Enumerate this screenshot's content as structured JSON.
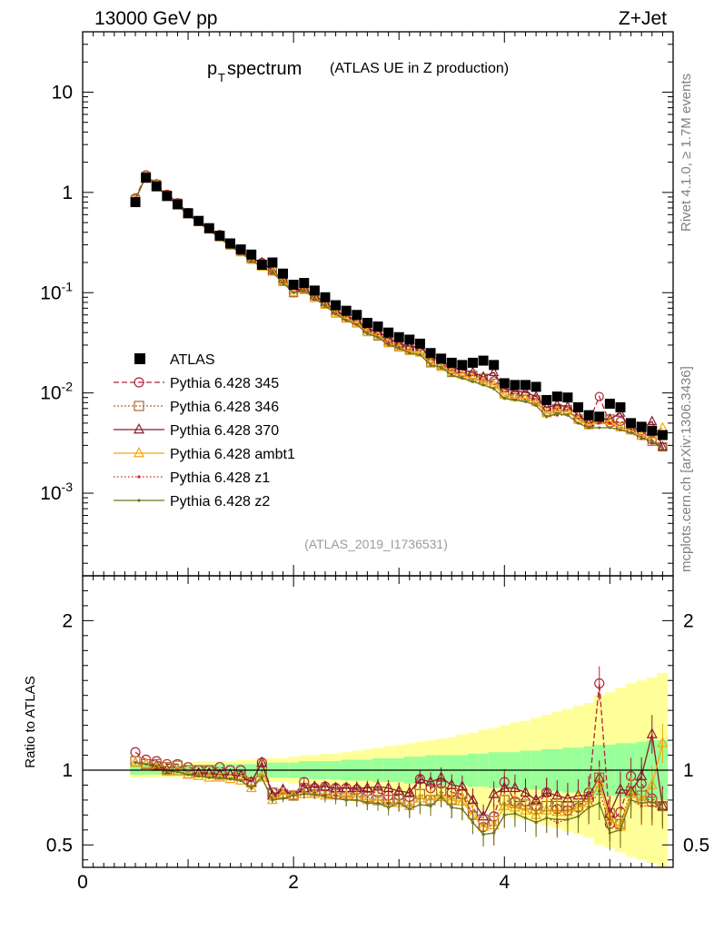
{
  "header": {
    "left": "13000 GeV pp",
    "right": "Z+Jet"
  },
  "title": {
    "main_p": "p",
    "main_sub": "T",
    "main_rest": " spectrum",
    "paren": "(ATLAS UE in Z production)"
  },
  "side": {
    "rivet": "Rivet 4.1.0, ≥ 1.7M events",
    "mcplots": "mcplots.cern.ch [arXiv:1306.3436]"
  },
  "analysis_id": "(ATLAS_2019_I1736531)",
  "ratio_ylabel": "Ratio to ATLAS",
  "colors": {
    "data": "#000000",
    "band_inner": "#99ff99",
    "band_outer": "#ffff99",
    "s345": "#b2253a",
    "s346": "#a86b2e",
    "s370": "#8c1a2a",
    "ambt1": "#f2a60a",
    "z1": "#d41c1c",
    "z2": "#6b7a1c"
  },
  "chart_data": [
    {
      "type": "line",
      "panel": "main",
      "title": "pT spectrum (ATLAS UE in Z production)",
      "xlabel": "",
      "ylabel": "",
      "xlim": [
        0,
        5.6
      ],
      "ylim": [
        0.00015,
        40
      ],
      "yscale": "log",
      "y_tick_labels": [
        "10",
        "1",
        "10^-1",
        "10^-2",
        "10^-3"
      ],
      "x": [
        0.5,
        0.6,
        0.7,
        0.8,
        0.9,
        1.0,
        1.1,
        1.2,
        1.3,
        1.4,
        1.5,
        1.6,
        1.7,
        1.8,
        1.9,
        2.0,
        2.1,
        2.2,
        2.3,
        2.4,
        2.5,
        2.6,
        2.7,
        2.8,
        2.9,
        3.0,
        3.1,
        3.2,
        3.3,
        3.4,
        3.5,
        3.6,
        3.7,
        3.8,
        3.9,
        4.0,
        4.1,
        4.2,
        4.3,
        4.4,
        4.5,
        4.6,
        4.7,
        4.8,
        4.9,
        5.0,
        5.1,
        5.2,
        5.3,
        5.4,
        5.5
      ],
      "data": {
        "name": "ATLAS",
        "values": [
          0.8,
          1.4,
          1.15,
          0.92,
          0.76,
          0.62,
          0.52,
          0.44,
          0.37,
          0.31,
          0.27,
          0.24,
          0.19,
          0.2,
          0.155,
          0.12,
          0.125,
          0.105,
          0.09,
          0.075,
          0.066,
          0.06,
          0.05,
          0.046,
          0.04,
          0.036,
          0.034,
          0.031,
          0.025,
          0.022,
          0.02,
          0.019,
          0.02,
          0.021,
          0.019,
          0.0125,
          0.012,
          0.012,
          0.0115,
          0.0085,
          0.0092,
          0.009,
          0.0072,
          0.006,
          0.0058,
          0.0078,
          0.0072,
          0.005,
          0.0046,
          0.0042,
          0.0038
        ]
      },
      "series": [
        {
          "name": "Pythia 6.428 345",
          "values": [
            0.88,
            1.5,
            1.22,
            0.96,
            0.79,
            0.63,
            0.52,
            0.44,
            0.38,
            0.31,
            0.27,
            0.22,
            0.2,
            0.17,
            0.13,
            0.1,
            0.115,
            0.092,
            0.08,
            0.066,
            0.058,
            0.052,
            0.043,
            0.039,
            0.033,
            0.03,
            0.028,
            0.029,
            0.022,
            0.02,
            0.017,
            0.016,
            0.014,
            0.013,
            0.0132,
            0.0115,
            0.0095,
            0.0095,
            0.0087,
            0.0072,
            0.0068,
            0.0066,
            0.0054,
            0.0051,
            0.0092,
            0.005,
            0.0052,
            0.0048,
            0.0042,
            0.0034,
            0.0029
          ]
        },
        {
          "name": "Pythia 6.428 346",
          "values": [
            0.85,
            1.45,
            1.2,
            0.94,
            0.78,
            0.62,
            0.52,
            0.44,
            0.36,
            0.3,
            0.26,
            0.22,
            0.19,
            0.17,
            0.13,
            0.1,
            0.11,
            0.09,
            0.078,
            0.063,
            0.056,
            0.05,
            0.041,
            0.037,
            0.032,
            0.029,
            0.027,
            0.026,
            0.02,
            0.019,
            0.016,
            0.016,
            0.015,
            0.014,
            0.0125,
            0.01,
            0.0093,
            0.0092,
            0.0085,
            0.0065,
            0.007,
            0.0068,
            0.0055,
            0.0049,
            0.0055,
            0.0055,
            0.0046,
            0.0043,
            0.0038,
            0.0033,
            0.0029
          ]
        },
        {
          "name": "Pythia 6.428 370",
          "values": [
            0.84,
            1.45,
            1.18,
            0.92,
            0.75,
            0.6,
            0.51,
            0.43,
            0.36,
            0.3,
            0.26,
            0.22,
            0.2,
            0.165,
            0.135,
            0.1,
            0.11,
            0.093,
            0.08,
            0.066,
            0.058,
            0.053,
            0.044,
            0.041,
            0.035,
            0.031,
            0.029,
            0.029,
            0.023,
            0.021,
            0.018,
            0.017,
            0.016,
            0.0145,
            0.016,
            0.011,
            0.0105,
            0.0102,
            0.0092,
            0.0072,
            0.0076,
            0.0073,
            0.006,
            0.005,
            0.0055,
            0.0055,
            0.0063,
            0.0043,
            0.0044,
            0.0052,
            0.0029
          ]
        },
        {
          "name": "Pythia 6.428 ambt1",
          "values": [
            0.84,
            1.45,
            1.17,
            0.91,
            0.75,
            0.6,
            0.5,
            0.42,
            0.35,
            0.29,
            0.25,
            0.21,
            0.18,
            0.16,
            0.13,
            0.1,
            0.105,
            0.088,
            0.075,
            0.062,
            0.055,
            0.049,
            0.04,
            0.037,
            0.031,
            0.028,
            0.026,
            0.025,
            0.02,
            0.018,
            0.016,
            0.015,
            0.014,
            0.013,
            0.012,
            0.0095,
            0.009,
            0.0088,
            0.008,
            0.0062,
            0.0066,
            0.0065,
            0.0054,
            0.0047,
            0.0053,
            0.0052,
            0.0045,
            0.0042,
            0.0037,
            0.0038,
            0.0045
          ]
        },
        {
          "name": "Pythia 6.428 z1",
          "values": [
            0.84,
            1.45,
            1.17,
            0.91,
            0.75,
            0.6,
            0.5,
            0.42,
            0.35,
            0.29,
            0.25,
            0.21,
            0.18,
            0.16,
            0.125,
            0.1,
            0.105,
            0.088,
            0.075,
            0.062,
            0.053,
            0.048,
            0.039,
            0.036,
            0.031,
            0.028,
            0.025,
            0.024,
            0.019,
            0.018,
            0.015,
            0.014,
            0.013,
            0.012,
            0.011,
            0.0088,
            0.0085,
            0.0082,
            0.0075,
            0.0058,
            0.006,
            0.006,
            0.005,
            0.0045,
            0.005,
            0.005,
            0.0043,
            0.004,
            0.0035,
            0.0032,
            0.0028
          ]
        },
        {
          "name": "Pythia 6.428 z2",
          "values": [
            0.84,
            1.45,
            1.17,
            0.91,
            0.75,
            0.6,
            0.5,
            0.42,
            0.35,
            0.29,
            0.25,
            0.21,
            0.18,
            0.16,
            0.125,
            0.1,
            0.105,
            0.088,
            0.074,
            0.061,
            0.053,
            0.048,
            0.039,
            0.036,
            0.03,
            0.028,
            0.025,
            0.024,
            0.019,
            0.018,
            0.015,
            0.014,
            0.013,
            0.012,
            0.011,
            0.0088,
            0.0085,
            0.0082,
            0.0075,
            0.0058,
            0.0062,
            0.006,
            0.005,
            0.0045,
            0.0045,
            0.0045,
            0.0043,
            0.004,
            0.0036,
            0.0033,
            0.0028
          ]
        }
      ]
    },
    {
      "type": "line",
      "panel": "ratio",
      "xlabel": "",
      "ylabel": "Ratio to ATLAS",
      "xlim": [
        0,
        5.6
      ],
      "ylim": [
        0.35,
        2.3
      ],
      "x_tick_labels": [
        "0",
        "2",
        "4"
      ],
      "y_tick_labels": [
        "0.5",
        "1",
        "2"
      ],
      "x": [
        0.5,
        0.6,
        0.7,
        0.8,
        0.9,
        1.0,
        1.1,
        1.2,
        1.3,
        1.4,
        1.5,
        1.6,
        1.7,
        1.8,
        1.9,
        2.0,
        2.1,
        2.2,
        2.3,
        2.4,
        2.5,
        2.6,
        2.7,
        2.8,
        2.9,
        3.0,
        3.1,
        3.2,
        3.3,
        3.4,
        3.5,
        3.6,
        3.7,
        3.8,
        3.9,
        4.0,
        4.1,
        4.2,
        4.3,
        4.4,
        4.5,
        4.6,
        4.7,
        4.8,
        4.9,
        5.0,
        5.1,
        5.2,
        5.3,
        5.4,
        5.5
      ],
      "band_inner_half": [
        0.03,
        0.03,
        0.03,
        0.03,
        0.03,
        0.03,
        0.03,
        0.03,
        0.04,
        0.04,
        0.04,
        0.04,
        0.05,
        0.05,
        0.05,
        0.05,
        0.06,
        0.06,
        0.06,
        0.06,
        0.07,
        0.07,
        0.07,
        0.08,
        0.08,
        0.08,
        0.09,
        0.09,
        0.1,
        0.1,
        0.1,
        0.1,
        0.11,
        0.11,
        0.12,
        0.12,
        0.12,
        0.13,
        0.13,
        0.14,
        0.14,
        0.15,
        0.15,
        0.16,
        0.17,
        0.17,
        0.18,
        0.18,
        0.19,
        0.2,
        0.2
      ],
      "band_outer_half": [
        0.05,
        0.05,
        0.05,
        0.05,
        0.05,
        0.05,
        0.06,
        0.06,
        0.06,
        0.06,
        0.07,
        0.07,
        0.08,
        0.08,
        0.08,
        0.09,
        0.1,
        0.1,
        0.11,
        0.11,
        0.12,
        0.13,
        0.14,
        0.15,
        0.16,
        0.17,
        0.18,
        0.19,
        0.2,
        0.21,
        0.22,
        0.24,
        0.25,
        0.27,
        0.28,
        0.3,
        0.32,
        0.33,
        0.35,
        0.37,
        0.39,
        0.41,
        0.43,
        0.45,
        0.5,
        0.52,
        0.55,
        0.58,
        0.6,
        0.62,
        0.65
      ],
      "series": [
        {
          "name": "Pythia 6.428 345",
          "values": [
            1.12,
            1.07,
            1.06,
            1.04,
            1.04,
            1.02,
            1.0,
            1.0,
            1.02,
            1.0,
            1.0,
            0.92,
            1.05,
            0.85,
            0.84,
            0.83,
            0.92,
            0.88,
            0.89,
            0.88,
            0.88,
            0.87,
            0.86,
            0.85,
            0.83,
            0.83,
            0.82,
            0.94,
            0.88,
            0.91,
            0.85,
            0.84,
            0.7,
            0.62,
            0.69,
            0.92,
            0.79,
            0.79,
            0.76,
            0.85,
            0.74,
            0.73,
            0.75,
            0.85,
            1.58,
            0.64,
            0.72,
            0.96,
            0.91,
            0.81,
            0.76
          ]
        },
        {
          "name": "Pythia 6.428 346",
          "values": [
            1.06,
            1.04,
            1.04,
            1.02,
            1.03,
            1.0,
            1.0,
            1.0,
            0.97,
            0.97,
            0.96,
            0.92,
            0.99,
            0.85,
            0.84,
            0.83,
            0.88,
            0.86,
            0.87,
            0.84,
            0.85,
            0.83,
            0.82,
            0.8,
            0.8,
            0.81,
            0.79,
            0.84,
            0.8,
            0.86,
            0.8,
            0.84,
            0.75,
            0.67,
            0.66,
            0.8,
            0.78,
            0.77,
            0.74,
            0.76,
            0.76,
            0.76,
            0.76,
            0.82,
            0.95,
            0.71,
            0.64,
            0.86,
            0.83,
            0.79,
            0.76
          ]
        },
        {
          "name": "Pythia 6.428 370",
          "values": [
            1.05,
            1.04,
            1.03,
            1.0,
            0.99,
            0.97,
            0.98,
            0.98,
            0.97,
            0.97,
            0.96,
            0.92,
            1.05,
            0.83,
            0.87,
            0.83,
            0.88,
            0.89,
            0.89,
            0.88,
            0.88,
            0.88,
            0.88,
            0.89,
            0.88,
            0.86,
            0.85,
            0.94,
            0.92,
            0.95,
            0.9,
            0.89,
            0.8,
            0.69,
            0.84,
            0.88,
            0.88,
            0.85,
            0.8,
            0.85,
            0.83,
            0.81,
            0.83,
            0.83,
            0.95,
            0.71,
            0.87,
            0.86,
            0.96,
            1.24,
            0.76
          ]
        },
        {
          "name": "Pythia 6.428 ambt1",
          "values": [
            1.05,
            1.04,
            1.02,
            0.99,
            0.99,
            0.97,
            0.96,
            0.95,
            0.95,
            0.94,
            0.93,
            0.88,
            0.95,
            0.8,
            0.84,
            0.83,
            0.84,
            0.84,
            0.83,
            0.83,
            0.83,
            0.82,
            0.8,
            0.8,
            0.78,
            0.78,
            0.76,
            0.81,
            0.8,
            0.82,
            0.8,
            0.79,
            0.7,
            0.62,
            0.63,
            0.76,
            0.75,
            0.73,
            0.7,
            0.73,
            0.72,
            0.72,
            0.75,
            0.78,
            0.91,
            0.67,
            0.62,
            0.84,
            0.8,
            0.9,
            1.18
          ]
        },
        {
          "name": "Pythia 6.428 z1",
          "values": [
            1.05,
            1.04,
            1.02,
            0.99,
            0.99,
            0.97,
            0.96,
            0.95,
            0.95,
            0.94,
            0.93,
            0.88,
            0.95,
            0.8,
            0.81,
            0.83,
            0.84,
            0.84,
            0.83,
            0.83,
            0.8,
            0.8,
            0.78,
            0.78,
            0.78,
            0.78,
            0.74,
            0.77,
            0.76,
            0.82,
            0.75,
            0.74,
            0.65,
            0.57,
            0.58,
            0.7,
            0.71,
            0.68,
            0.65,
            0.68,
            0.65,
            0.67,
            0.69,
            0.75,
            0.86,
            0.64,
            0.6,
            0.8,
            0.76,
            0.76,
            0.74
          ]
        },
        {
          "name": "Pythia 6.428 z2",
          "values": [
            1.05,
            1.04,
            1.02,
            0.99,
            0.99,
            0.97,
            0.96,
            0.95,
            0.95,
            0.94,
            0.93,
            0.88,
            0.95,
            0.8,
            0.81,
            0.83,
            0.84,
            0.84,
            0.82,
            0.81,
            0.8,
            0.8,
            0.78,
            0.78,
            0.75,
            0.78,
            0.74,
            0.77,
            0.76,
            0.82,
            0.75,
            0.74,
            0.65,
            0.57,
            0.58,
            0.7,
            0.71,
            0.68,
            0.65,
            0.68,
            0.67,
            0.67,
            0.69,
            0.75,
            0.78,
            0.58,
            0.6,
            0.8,
            0.78,
            0.79,
            0.74
          ]
        }
      ]
    }
  ],
  "legend": [
    {
      "key": "data",
      "label": "ATLAS"
    },
    {
      "key": "s345",
      "label": "Pythia 6.428 345"
    },
    {
      "key": "s346",
      "label": "Pythia 6.428 346"
    },
    {
      "key": "s370",
      "label": "Pythia 6.428 370"
    },
    {
      "key": "ambt1",
      "label": "Pythia 6.428 ambt1"
    },
    {
      "key": "z1",
      "label": "Pythia 6.428 z1"
    },
    {
      "key": "z2",
      "label": "Pythia 6.428 z2"
    }
  ]
}
